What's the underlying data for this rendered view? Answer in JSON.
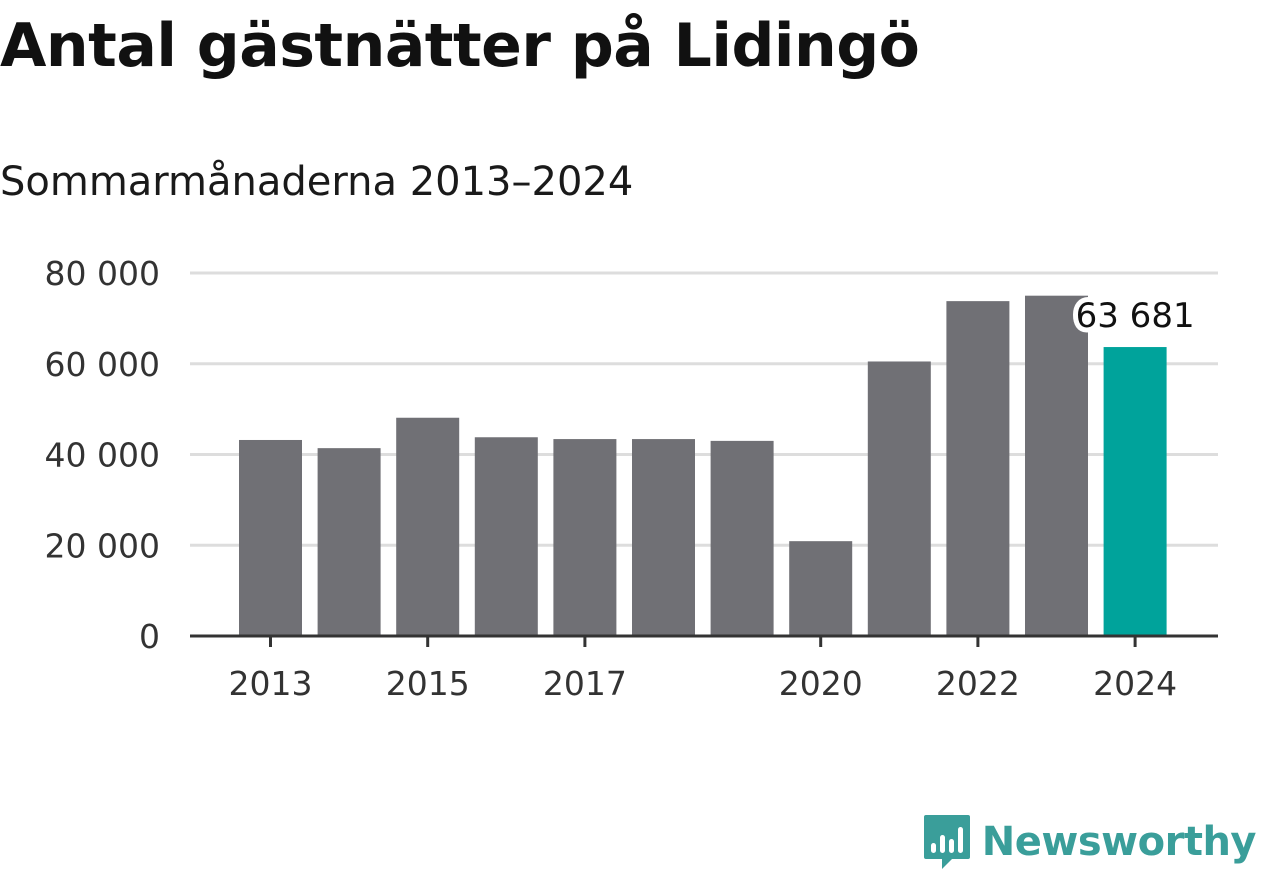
{
  "title": "Antal gästnätter på Lidingö",
  "subtitle": "Sommarmånaderna 2013–2024",
  "brand": {
    "name": "Newsworthy",
    "color": "#3a9e9a",
    "icon": "newsworthy-logo-icon"
  },
  "colors": {
    "bar": "#707075",
    "highlight": "#00a39b",
    "grid": "#dddddd",
    "axis": "#333333"
  },
  "chart_data": {
    "type": "bar",
    "categories": [
      "2013",
      "2014",
      "2015",
      "2016",
      "2017",
      "2018",
      "2019",
      "2020",
      "2021",
      "2022",
      "2023",
      "2024"
    ],
    "values": [
      43200,
      41400,
      48100,
      43800,
      43400,
      43400,
      43000,
      20900,
      60500,
      73800,
      75000,
      63681
    ],
    "highlight_index": 11,
    "data_labels": [
      {
        "index": 11,
        "text": "63 681"
      }
    ],
    "xticks": [
      "2013",
      "2015",
      "2017",
      "2020",
      "2022",
      "2024"
    ],
    "yticks": [
      {
        "value": 0,
        "label": "0"
      },
      {
        "value": 20000,
        "label": "20 000"
      },
      {
        "value": 40000,
        "label": "40 000"
      },
      {
        "value": 60000,
        "label": "60 000"
      },
      {
        "value": 80000,
        "label": "80 000"
      }
    ],
    "ylim": [
      0,
      80000
    ],
    "xlabel": "",
    "ylabel": "",
    "grid": true,
    "legend": "none"
  }
}
